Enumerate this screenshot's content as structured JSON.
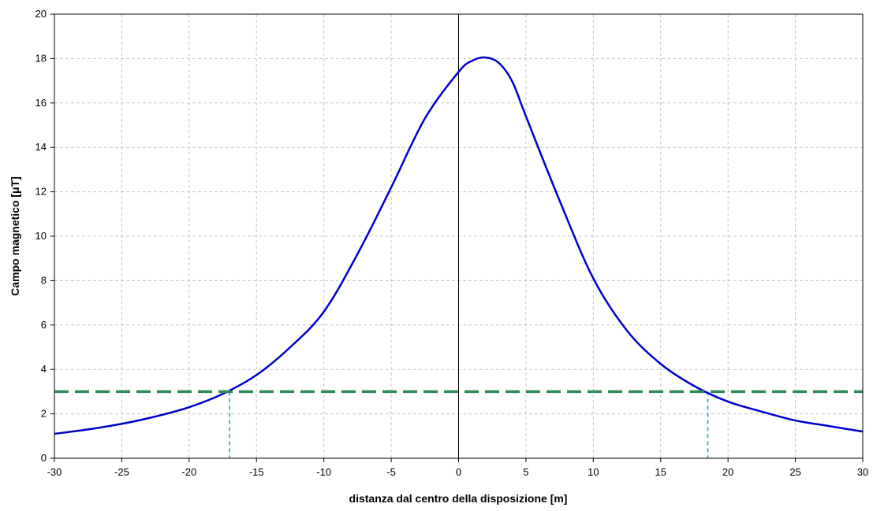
{
  "chart_data": {
    "type": "line",
    "title": "",
    "xlabel": "distanza dal centro della disposizione [m]",
    "ylabel": "Campo magnetico [μT]",
    "xlim": [
      -30,
      30
    ],
    "ylim": [
      0,
      20
    ],
    "x_ticks": [
      -30,
      -25,
      -20,
      -15,
      -10,
      -5,
      0,
      5,
      10,
      15,
      20,
      25,
      30
    ],
    "y_ticks": [
      0,
      2,
      4,
      6,
      8,
      10,
      12,
      14,
      16,
      18,
      20
    ],
    "grid": true,
    "legend": "none",
    "series": [
      {
        "color": "#0000cc",
        "style": "solid",
        "x": [
          -30,
          -27.5,
          -25,
          -22.5,
          -20,
          -17.5,
          -15,
          -12.5,
          -10,
          -7.5,
          -5,
          -2.5,
          0,
          1,
          2,
          3,
          4,
          5,
          7.5,
          10,
          12.5,
          15,
          17.5,
          20,
          22.5,
          25,
          27.5,
          30
        ],
        "y": [
          1.1,
          1.3,
          1.55,
          1.88,
          2.3,
          2.9,
          3.75,
          5.0,
          6.6,
          9.2,
          12.2,
          15.3,
          17.4,
          17.9,
          18.05,
          17.8,
          16.95,
          15.4,
          11.6,
          8.1,
          5.75,
          4.25,
          3.25,
          2.55,
          2.1,
          1.7,
          1.45,
          1.2
        ]
      },
      {
        "color": "#2e8b57",
        "style": "dashed",
        "x": [
          -30,
          30
        ],
        "y": [
          3,
          3
        ]
      }
    ],
    "markers": [
      {
        "x": -17,
        "y": 3,
        "color": "#17a9c8"
      },
      {
        "x": 18.5,
        "y": 3,
        "color": "#17a9c8"
      }
    ]
  }
}
